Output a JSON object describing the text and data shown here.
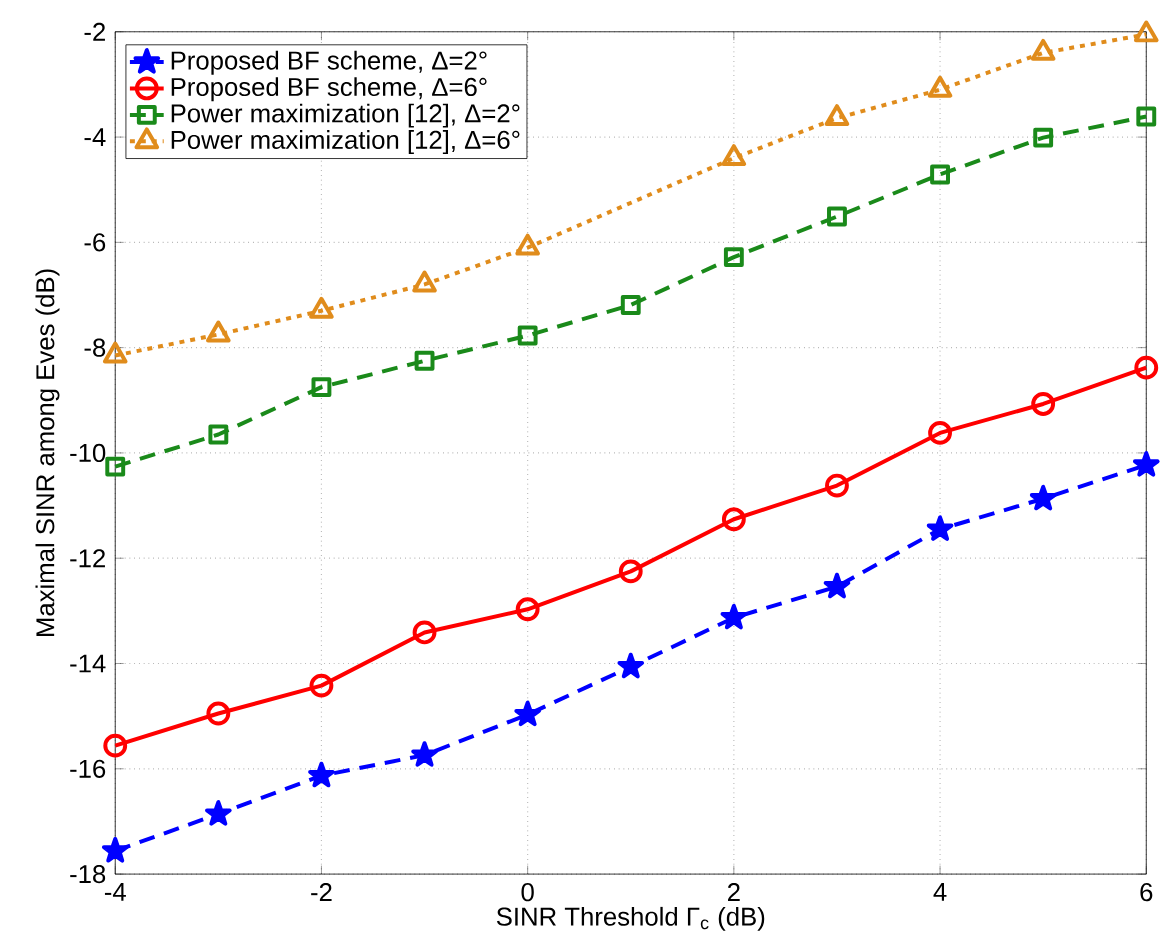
{
  "chart_data": {
    "type": "line",
    "xlabel": "SINR Threshold Γ$_{c}$ (dB)",
    "ylabel": "Maximal SINR among Eves (dB)",
    "x": [
      -4,
      -3,
      -2,
      -1,
      0,
      1,
      2,
      3,
      4,
      5,
      6
    ],
    "xlim": [
      -4,
      6
    ],
    "xticks": [
      -4,
      -2,
      0,
      2,
      4,
      6
    ],
    "ylim": [
      -18,
      -2
    ],
    "yticks": [
      -18,
      -16,
      -14,
      -12,
      -10,
      -8,
      -6,
      -4,
      -2
    ],
    "grid": true,
    "legend": "top left",
    "series": [
      {
        "name": "Proposed BF scheme, Δ=2°",
        "color": "#0000ff",
        "marker": "star",
        "line_style": "dashed",
        "values": [
          -17.56,
          -16.86,
          -16.13,
          -15.74,
          -14.97,
          -14.06,
          -13.13,
          -12.54,
          -11.45,
          -10.87,
          -10.23
        ]
      },
      {
        "name": "Proposed BF scheme, Δ=6°",
        "color": "#ff0000",
        "marker": "circle",
        "line_style": "solid",
        "values": [
          -15.56,
          -14.95,
          -14.42,
          -13.41,
          -12.97,
          -12.25,
          -11.26,
          -10.62,
          -9.62,
          -9.07,
          -8.38
        ]
      },
      {
        "name": "Power maximization [12], Δ=2°",
        "color": "#1a8a1a",
        "marker": "square",
        "line_style": "dashed",
        "values": [
          -10.26,
          -9.65,
          -8.75,
          -8.25,
          -7.77,
          -7.19,
          -6.28,
          -5.51,
          -4.71,
          -4.01,
          -3.61
        ]
      },
      {
        "name": "Power maximization [12], Δ=6°",
        "color": "#e08c1c",
        "marker": "triangle",
        "line_style": "dotted",
        "values": [
          -8.15,
          -7.75,
          -7.3,
          -6.8,
          -6.1,
          null,
          -4.4,
          -3.64,
          -3.1,
          -2.4,
          -2.05
        ]
      }
    ]
  }
}
